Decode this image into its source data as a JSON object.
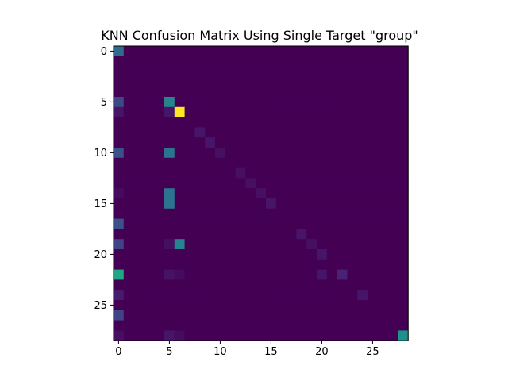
{
  "chart_data": {
    "type": "heatmap",
    "title": "KNN Confusion Matrix Using Single Target \"group\"",
    "xlabel": "",
    "ylabel": "",
    "n_rows": 29,
    "n_cols": 29,
    "colormap": "viridis",
    "value_range": [
      0,
      1
    ],
    "x_ticks": [
      0,
      5,
      10,
      15,
      20,
      25
    ],
    "y_ticks": [
      0,
      5,
      10,
      15,
      20,
      25
    ],
    "x_tick_labels": [
      "0",
      "5",
      "10",
      "15",
      "20",
      "25"
    ],
    "y_tick_labels": [
      "0",
      "5",
      "10",
      "15",
      "20",
      "25"
    ],
    "nonzero_cells": [
      {
        "row": 0,
        "col": 0,
        "value": 0.35
      },
      {
        "row": 5,
        "col": 0,
        "value": 0.22
      },
      {
        "row": 5,
        "col": 5,
        "value": 0.45
      },
      {
        "row": 6,
        "col": 0,
        "value": 0.06
      },
      {
        "row": 6,
        "col": 5,
        "value": 0.06
      },
      {
        "row": 6,
        "col": 6,
        "value": 1.0
      },
      {
        "row": 8,
        "col": 8,
        "value": 0.06
      },
      {
        "row": 9,
        "col": 9,
        "value": 0.06
      },
      {
        "row": 10,
        "col": 0,
        "value": 0.25
      },
      {
        "row": 10,
        "col": 5,
        "value": 0.38
      },
      {
        "row": 10,
        "col": 10,
        "value": 0.04
      },
      {
        "row": 12,
        "col": 12,
        "value": 0.04
      },
      {
        "row": 13,
        "col": 13,
        "value": 0.04
      },
      {
        "row": 14,
        "col": 0,
        "value": 0.03
      },
      {
        "row": 14,
        "col": 5,
        "value": 0.38
      },
      {
        "row": 14,
        "col": 14,
        "value": 0.04
      },
      {
        "row": 15,
        "col": 5,
        "value": 0.38
      },
      {
        "row": 15,
        "col": 15,
        "value": 0.06
      },
      {
        "row": 17,
        "col": 0,
        "value": 0.25
      },
      {
        "row": 18,
        "col": 18,
        "value": 0.06
      },
      {
        "row": 19,
        "col": 0,
        "value": 0.2
      },
      {
        "row": 19,
        "col": 5,
        "value": 0.04
      },
      {
        "row": 19,
        "col": 6,
        "value": 0.45
      },
      {
        "row": 19,
        "col": 19,
        "value": 0.04
      },
      {
        "row": 20,
        "col": 20,
        "value": 0.06
      },
      {
        "row": 22,
        "col": 0,
        "value": 0.6
      },
      {
        "row": 22,
        "col": 5,
        "value": 0.05
      },
      {
        "row": 22,
        "col": 6,
        "value": 0.03
      },
      {
        "row": 22,
        "col": 20,
        "value": 0.06
      },
      {
        "row": 22,
        "col": 22,
        "value": 0.1
      },
      {
        "row": 24,
        "col": 0,
        "value": 0.08
      },
      {
        "row": 24,
        "col": 24,
        "value": 0.06
      },
      {
        "row": 26,
        "col": 0,
        "value": 0.2
      },
      {
        "row": 28,
        "col": 0,
        "value": 0.04
      },
      {
        "row": 28,
        "col": 5,
        "value": 0.06
      },
      {
        "row": 28,
        "col": 6,
        "value": 0.03
      },
      {
        "row": 28,
        "col": 28,
        "value": 0.5
      }
    ],
    "grid": false,
    "legend": "none"
  }
}
